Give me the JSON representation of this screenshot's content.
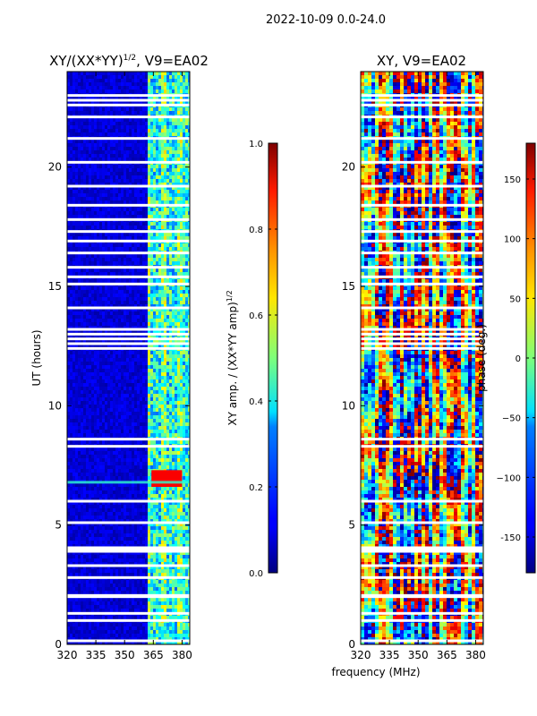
{
  "figure": {
    "suptitle": "2022-10-09 0.0-24.0",
    "xlabel": "frequency (MHz)"
  },
  "chart_data": [
    {
      "type": "heatmap",
      "title": "XY/(XX*YY)",
      "title_sup": "1/2",
      "title_suffix": ", V9=EA02",
      "xlabel": "",
      "ylabel": "UT (hours)",
      "x_ticks": [
        "320",
        "335",
        "350",
        "365",
        "380"
      ],
      "x_tick_values": [
        320,
        335,
        350,
        365,
        380
      ],
      "xlim": [
        320,
        384
      ],
      "y_ticks": [
        "0",
        "5",
        "10",
        "15",
        "20"
      ],
      "y_tick_values": [
        0,
        5,
        10,
        15,
        20
      ],
      "ylim": [
        0,
        24
      ],
      "colormap": "jet",
      "colorbar": {
        "label_main": "XY amp. / (XX*YY amp)",
        "label_sup": "1/2",
        "ticks": [
          "0.0",
          "0.2",
          "0.4",
          "0.6",
          "0.8",
          "1.0"
        ],
        "tick_values": [
          0.0,
          0.2,
          0.4,
          0.6,
          0.8,
          1.0
        ],
        "range": [
          0.0,
          1.0
        ]
      },
      "bright_band_MHz": [
        362,
        384
      ],
      "flare_UT_hours": [
        6.6,
        7.3
      ],
      "flare_MHz": [
        364,
        380
      ],
      "gaps_UT_hours": [
        0.15,
        1.0,
        1.3,
        2.0,
        2.05,
        2.8,
        3.3,
        3.9,
        3.95,
        4.05,
        5.1,
        6.0,
        8.3,
        8.6,
        12.4,
        12.6,
        12.8,
        13.0,
        13.2,
        14.1,
        15.1,
        15.4,
        15.8,
        16.4,
        16.9,
        17.3,
        17.8,
        18.4,
        19.2,
        20.2,
        21.2,
        22.1,
        22.6,
        22.8,
        23.0
      ]
    },
    {
      "type": "heatmap",
      "title": "XY, V9=EA02",
      "xlabel": "",
      "ylabel": "",
      "x_ticks": [
        "320",
        "335",
        "350",
        "365",
        "380"
      ],
      "x_tick_values": [
        320,
        335,
        350,
        365,
        380
      ],
      "xlim": [
        320,
        384
      ],
      "y_ticks": [
        "0",
        "5",
        "10",
        "15",
        "20"
      ],
      "y_tick_values": [
        0,
        5,
        10,
        15,
        20
      ],
      "ylim": [
        0,
        24
      ],
      "colormap": "jet",
      "colorbar": {
        "label_main": "phase (deg.)",
        "ticks": [
          "-150",
          "−100",
          "−50",
          "0",
          "50",
          "100",
          "150"
        ],
        "tick_values": [
          -150,
          -100,
          -50,
          0,
          50,
          100,
          150
        ],
        "range": [
          -180,
          180
        ]
      },
      "gaps_UT_hours": [
        0.15,
        1.0,
        1.3,
        2.0,
        2.05,
        2.8,
        3.3,
        3.9,
        3.95,
        4.05,
        5.1,
        6.0,
        8.3,
        8.6,
        12.4,
        12.6,
        12.8,
        13.0,
        13.2,
        14.1,
        15.1,
        15.4,
        15.8,
        16.4,
        16.9,
        17.3,
        17.8,
        18.4,
        19.2,
        20.2,
        21.2,
        22.1,
        22.6,
        22.8,
        23.0
      ]
    }
  ]
}
